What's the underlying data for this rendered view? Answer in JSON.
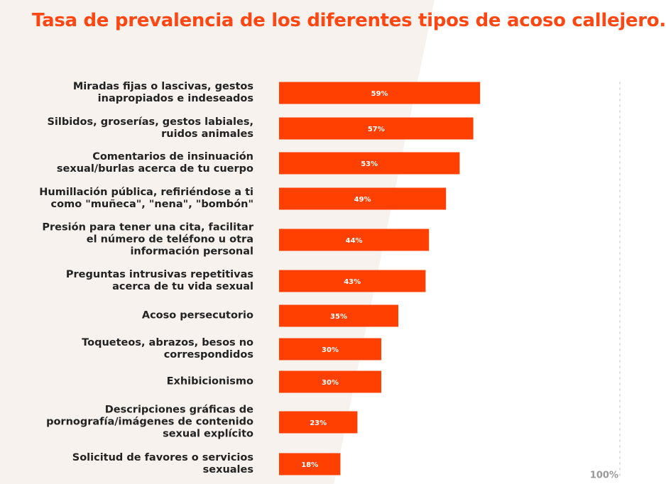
{
  "chart_data": {
    "type": "bar",
    "orientation": "horizontal",
    "title": "Tasa de prevalencia de los diferentes tipos de acoso callejero.",
    "categories": [
      "Miradas fijas o lascivas, gestos\ninapropiados e indeseados",
      "Silbidos, groserías, gestos labiales,\nruidos animales",
      "Comentarios de insinuación\nsexual/burlas acerca de tu cuerpo",
      "Humillación pública, refiriéndose a ti\ncomo \"muñeca\", \"nena\", \"bombón\"",
      "Presión para tener una cita, facilitar\nel número de teléfono u otra\ninformación personal",
      "Preguntas intrusivas repetitivas\nacerca de tu vida sexual",
      "Acoso persecutorio",
      "Toqueteos, abrazos, besos no\ncorrespondidos",
      "Exhibicionismo",
      "Descripciones gráficas de\npornografía/imágenes de contenido\nsexual explícito",
      "Solicitud de favores o servicios\nsexuales"
    ],
    "values": [
      59,
      57,
      53,
      49,
      44,
      43,
      35,
      30,
      30,
      23,
      18
    ],
    "value_labels": [
      "59%",
      "57%",
      "53%",
      "49%",
      "44%",
      "43%",
      "35%",
      "30%",
      "30%",
      "23%",
      "18%"
    ],
    "color": "#ff4000",
    "xlim": [
      0,
      100
    ],
    "xticks": [
      {
        "value": 100,
        "label": "100%"
      }
    ]
  }
}
